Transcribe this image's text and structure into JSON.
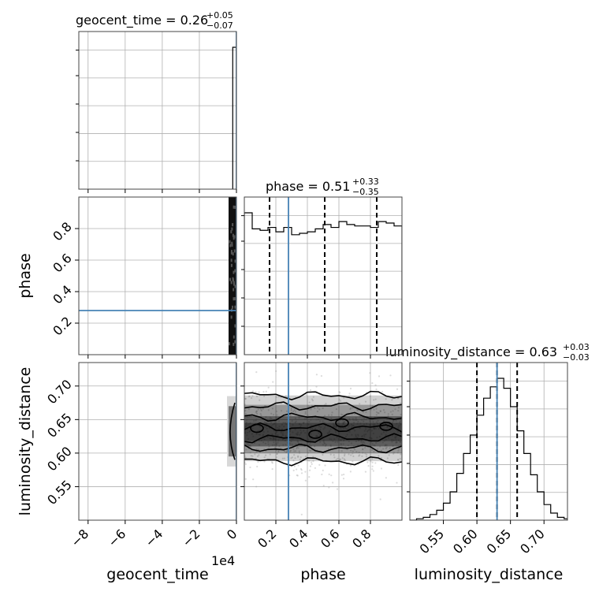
{
  "chart_data": {
    "type": "corner",
    "parameters": [
      "geocent_time",
      "phase",
      "luminosity_distance"
    ],
    "axis_labels": {
      "geocent_time": "geocent_time",
      "phase": "phase",
      "luminosity_distance": "luminosity_distance"
    },
    "offset_text": {
      "geocent_time": "1e4"
    },
    "ranges": {
      "geocent_time": [
        -85000,
        0
      ],
      "phase": [
        0.0,
        1.0
      ],
      "luminosity_distance": [
        0.5,
        0.735
      ]
    },
    "ticks": {
      "geocent_time": {
        "values": [
          -80000,
          -60000,
          -40000,
          -20000,
          0
        ],
        "labels": [
          "−8",
          "−6",
          "−4",
          "−2",
          "0"
        ]
      },
      "phase": {
        "values": [
          0.2,
          0.4,
          0.6,
          0.8
        ],
        "labels": [
          "0.2",
          "0.4",
          "0.6",
          "0.8"
        ]
      },
      "luminosity_distance": {
        "values": [
          0.55,
          0.6,
          0.65,
          0.7
        ],
        "labels": [
          "0.55",
          "0.60",
          "0.65",
          "0.70"
        ]
      }
    },
    "titles": [
      {
        "param": "geocent_time",
        "prefix": "geocent_time = 0.26",
        "sup": "+0.05",
        "sub": "−0.07"
      },
      {
        "param": "phase",
        "prefix": "phase = 0.51",
        "sup": "+0.33",
        "sub": "−0.35"
      },
      {
        "param": "luminosity_distance",
        "prefix": "luminosity_distance = 0.63",
        "sup": "+0.03",
        "sub": "−0.03"
      }
    ],
    "truths": {
      "geocent_time": 0,
      "phase": 0.28,
      "luminosity_distance": 0.63
    },
    "quantiles": {
      "phase": [
        0.16,
        0.51,
        0.84
      ],
      "luminosity_distance": [
        0.6,
        0.63,
        0.66
      ]
    },
    "histograms": {
      "geocent_time": {
        "edges": [
          -2000,
          0
        ],
        "counts": [
          1.0
        ]
      },
      "phase": {
        "edges": [
          0.0,
          0.05,
          0.1,
          0.15,
          0.2,
          0.25,
          0.3,
          0.35,
          0.4,
          0.45,
          0.5,
          0.55,
          0.6,
          0.65,
          0.7,
          0.75,
          0.8,
          0.85,
          0.9,
          0.95,
          1.0
        ],
        "counts": [
          0.97,
          0.86,
          0.85,
          0.87,
          0.84,
          0.87,
          0.82,
          0.83,
          0.84,
          0.86,
          0.89,
          0.87,
          0.91,
          0.89,
          0.88,
          0.88,
          0.87,
          0.91,
          0.9,
          0.88
        ]
      },
      "luminosity_distance": {
        "edges": [
          0.5,
          0.51,
          0.52,
          0.53,
          0.54,
          0.55,
          0.56,
          0.57,
          0.58,
          0.59,
          0.6,
          0.61,
          0.62,
          0.63,
          0.64,
          0.65,
          0.66,
          0.67,
          0.68,
          0.69,
          0.7,
          0.71,
          0.72,
          0.73,
          0.735
        ],
        "counts": [
          0.0,
          0.01,
          0.02,
          0.04,
          0.07,
          0.12,
          0.2,
          0.33,
          0.47,
          0.6,
          0.74,
          0.86,
          0.94,
          1.0,
          0.93,
          0.8,
          0.63,
          0.47,
          0.32,
          0.2,
          0.11,
          0.05,
          0.02,
          0.01
        ]
      }
    },
    "contour_levels": {
      "luminosity_distance": [
        0.588,
        0.607,
        0.622,
        0.638,
        0.654,
        0.67,
        0.686
      ]
    },
    "grid": true
  }
}
